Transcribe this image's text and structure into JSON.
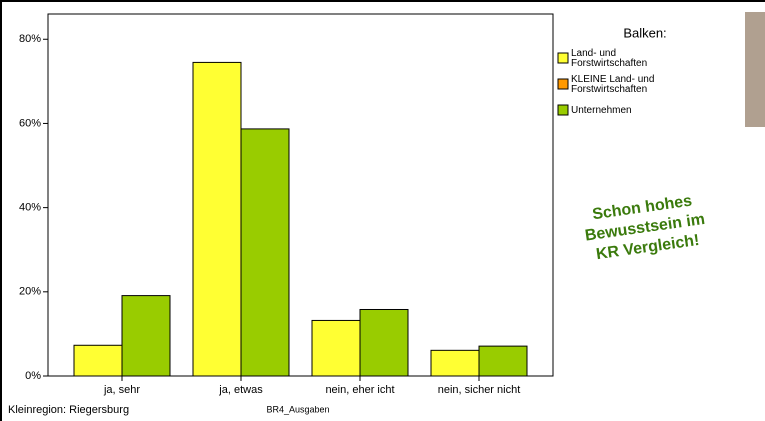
{
  "chart_data": {
    "type": "bar",
    "categories": [
      "ja, sehr",
      "ja, etwas",
      "nein, eher icht",
      "nein, sicher nicht"
    ],
    "series": [
      {
        "name": "Land- und Forstwirtschaften",
        "color": "#ffff33",
        "values": [
          7.3,
          74.5,
          13.2,
          6.1
        ]
      },
      {
        "name": "KLEINE Land- und Forstwirtschaften",
        "color": "#ff9900",
        "values": [
          null,
          null,
          null,
          null
        ]
      },
      {
        "name": "Unternehmen",
        "color": "#99cc00",
        "values": [
          19.1,
          58.7,
          15.8,
          7.1
        ]
      }
    ],
    "ylim": [
      0,
      86
    ],
    "yticks": [
      {
        "value": 0,
        "label": "0%"
      },
      {
        "value": 20,
        "label": "20%"
      },
      {
        "value": 40,
        "label": "40%"
      },
      {
        "value": 60,
        "label": "60%"
      },
      {
        "value": 80,
        "label": "80%"
      }
    ],
    "legend_title": "Balken:",
    "xlabel": "BR4_Ausgaben",
    "footer": "Kleinregion: Riegersburg",
    "annotation": [
      "Schon hohes",
      "Bewusstsein im",
      "KR Vergleich!"
    ]
  }
}
